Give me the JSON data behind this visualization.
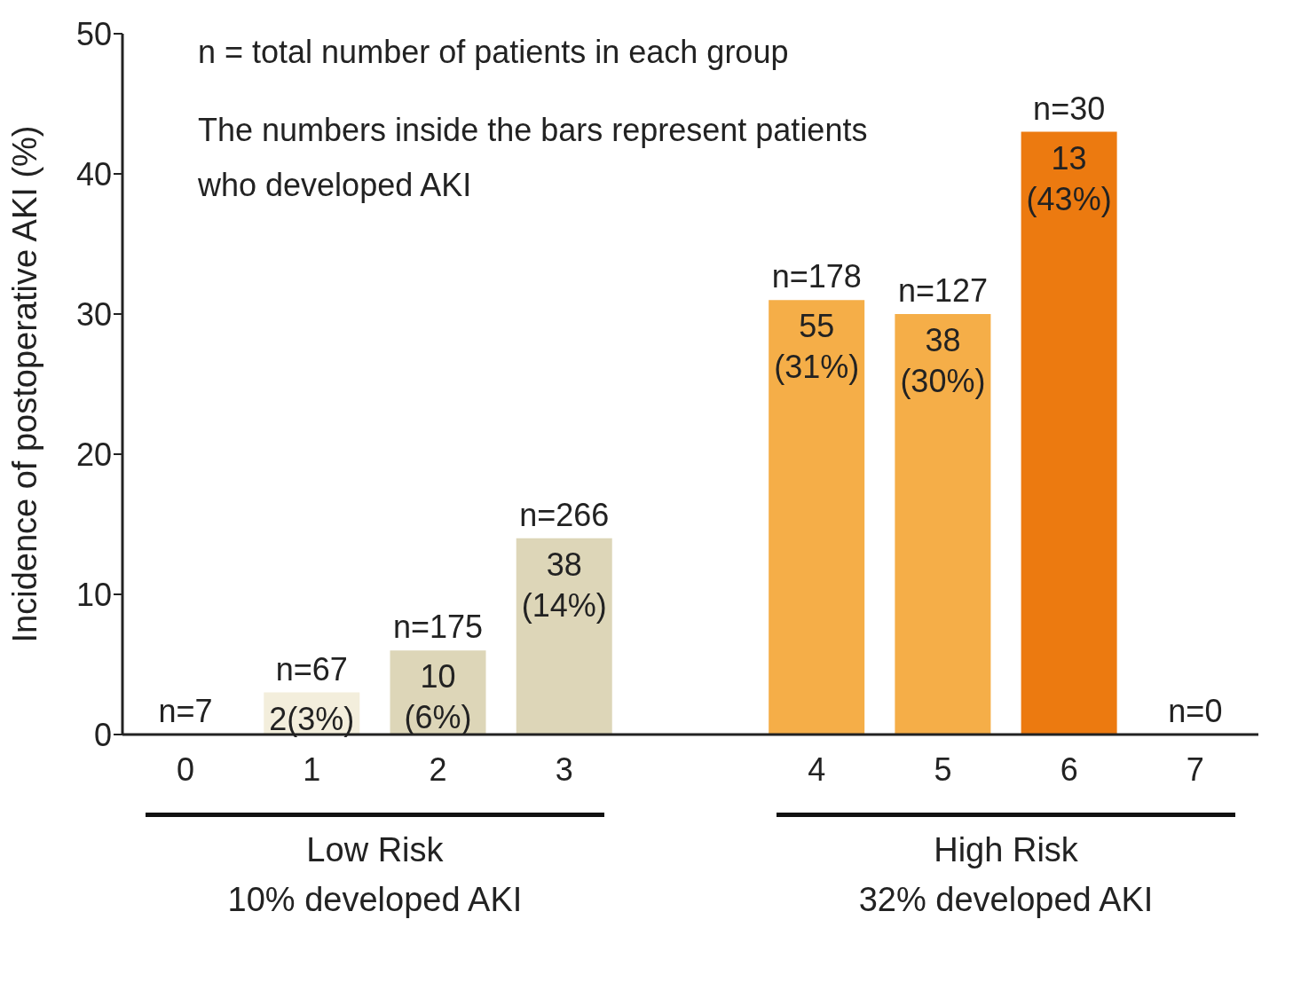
{
  "chart_data": {
    "type": "bar",
    "ylabel": "Incidence of postoperative AKI (%)",
    "categories": [
      "0",
      "1",
      "2",
      "3",
      null,
      "4",
      "5",
      "6",
      "7"
    ],
    "values": [
      0,
      3,
      6,
      14,
      null,
      31,
      30,
      43,
      0
    ],
    "colors": [
      "#efe9d6",
      "#f3eedc",
      "#ddd6b8",
      "#ddd6b8",
      "#ffffff",
      "#f5ae48",
      "#f5ae48",
      "#ec7a10",
      "#f5ae48"
    ],
    "value_labels": [
      null,
      "2(3%)",
      "10 (6%)",
      "38 (14%)",
      null,
      "55 (31%)",
      "38 (30%)",
      "13 (43%)",
      null
    ],
    "ylim": [
      0,
      50
    ],
    "yticks": [
      0,
      10,
      20,
      30,
      40,
      50
    ],
    "grid": false,
    "annotations": [
      "n = total number of patients in each group",
      "The numbers inside the bars represent patients who developed AKI",
      "Low Risk",
      "10% developed AKI",
      "High Risk",
      "32% developed AKI",
      {
        "text": "n=7",
        "x": "0",
        "y": 0
      },
      {
        "text": "n=67",
        "x": "1",
        "y": 3
      },
      {
        "text": "n=175",
        "x": "2",
        "y": 6
      },
      {
        "text": "n=266",
        "x": "3",
        "y": 14
      },
      {
        "text": "n=178",
        "x": "4",
        "y": 31
      },
      {
        "text": "n=127",
        "x": "5",
        "y": 30
      },
      {
        "text": "n=30",
        "x": "6",
        "y": 43
      },
      {
        "text": "n=0",
        "x": "7",
        "y": 0
      }
    ]
  }
}
